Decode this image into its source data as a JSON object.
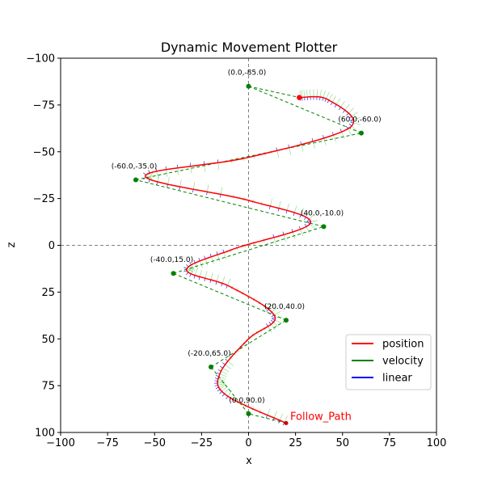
{
  "chart_data": {
    "type": "line",
    "title": "Dynamic Movement Plotter",
    "xlabel": "x",
    "ylabel": "z",
    "xlim": [
      -100,
      100
    ],
    "ylim": [
      -100,
      100
    ],
    "y_inverted": true,
    "xticks": [
      -100,
      -75,
      -50,
      -25,
      0,
      25,
      50,
      75,
      100
    ],
    "yticks": [
      -100,
      -75,
      -50,
      -25,
      0,
      25,
      50,
      75,
      100
    ],
    "xtick_labels": [
      "−100",
      "−75",
      "−50",
      "−25",
      "0",
      "25",
      "50",
      "75",
      "100"
    ],
    "ytick_labels": [
      "−100",
      "−75",
      "−50",
      "−25",
      "0",
      "25",
      "50",
      "75",
      "100"
    ],
    "reference_lines": {
      "x": 0,
      "z": 0,
      "style": "dashed",
      "color": "#808080"
    },
    "waypoints": [
      {
        "x": 0,
        "z": 90,
        "label": "(0.0,90.0)"
      },
      {
        "x": -20,
        "z": 65,
        "label": "(-20.0,65.0)"
      },
      {
        "x": 20,
        "z": 40,
        "label": "(20.0,40.0)"
      },
      {
        "x": -40,
        "z": 15,
        "label": "(-40.0,15.0)"
      },
      {
        "x": 40,
        "z": -10,
        "label": "(40.0,-10.0)"
      },
      {
        "x": -60,
        "z": -35,
        "label": "(-60.0,-35.0)"
      },
      {
        "x": 60,
        "z": -60,
        "label": "(60.0,-60.0)"
      },
      {
        "x": 0,
        "z": -85,
        "label": "(0.0,-85.0)"
      }
    ],
    "path_start": {
      "x": 20,
      "z": 95
    },
    "path_end": {
      "x": 27,
      "z": -79
    },
    "path_label": "Follow_Path",
    "series": [
      {
        "name": "position",
        "color": "#ff0000"
      },
      {
        "name": "velocity",
        "color": "#008000"
      },
      {
        "name": "linear",
        "color": "#0000ff"
      }
    ],
    "legend_position": "lower-right"
  }
}
